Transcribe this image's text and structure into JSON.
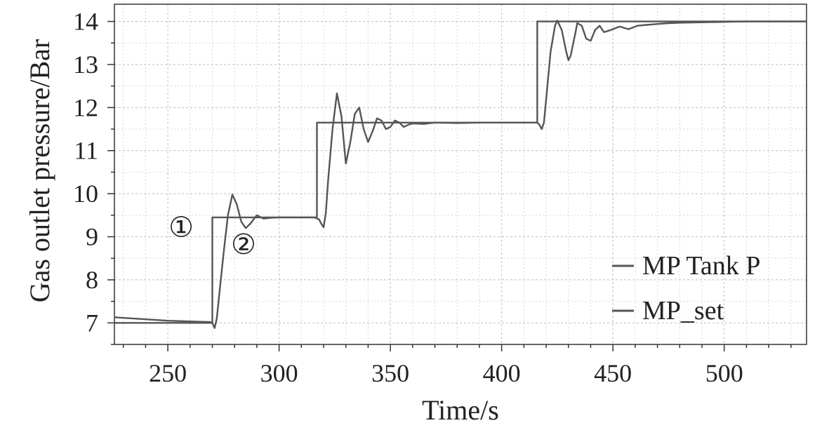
{
  "chart_data": {
    "type": "line",
    "title": "",
    "xlabel": "Time/s",
    "ylabel": "Gas outlet pressure/Bar",
    "xlim": [
      226,
      537
    ],
    "ylim": [
      6.5,
      14.4
    ],
    "xticks": [
      250,
      300,
      350,
      400,
      450,
      500
    ],
    "yticks": [
      7,
      8,
      9,
      10,
      11,
      12,
      13,
      14
    ],
    "grid": true,
    "legend_position": "bottom-right",
    "series": [
      {
        "name": "MP Tank P",
        "color": "#555555",
        "x": [
          226,
          250,
          269,
          270,
          271,
          272,
          273,
          275,
          277,
          279,
          281,
          283,
          285,
          287,
          290,
          293,
          296,
          300,
          310,
          316,
          318,
          319,
          320,
          321,
          322,
          324,
          326,
          328,
          330,
          332,
          334,
          336,
          338,
          340,
          342,
          344,
          346,
          348,
          350,
          352,
          354,
          356,
          358,
          360,
          365,
          370,
          380,
          390,
          400,
          410,
          415,
          416,
          417,
          418,
          419,
          420,
          422,
          424,
          425,
          427,
          429,
          430,
          431,
          433,
          434,
          436,
          438,
          440,
          442,
          444,
          446,
          449,
          453,
          457,
          461,
          465,
          470,
          475,
          480,
          490,
          500,
          510,
          520,
          537
        ],
        "y": [
          7.13,
          7.05,
          7.02,
          7.0,
          6.88,
          7.1,
          7.6,
          8.6,
          9.5,
          9.98,
          9.75,
          9.35,
          9.2,
          9.3,
          9.5,
          9.42,
          9.44,
          9.45,
          9.45,
          9.45,
          9.4,
          9.3,
          9.22,
          9.55,
          10.3,
          11.5,
          12.33,
          11.8,
          10.7,
          11.2,
          11.85,
          12.0,
          11.5,
          11.2,
          11.45,
          11.75,
          11.7,
          11.5,
          11.55,
          11.7,
          11.65,
          11.55,
          11.6,
          11.63,
          11.62,
          11.65,
          11.64,
          11.65,
          11.65,
          11.65,
          11.65,
          11.65,
          11.6,
          11.5,
          11.65,
          12.2,
          13.3,
          13.9,
          14.02,
          13.8,
          13.3,
          13.1,
          13.2,
          13.7,
          13.96,
          13.9,
          13.6,
          13.55,
          13.8,
          13.9,
          13.75,
          13.8,
          13.88,
          13.82,
          13.9,
          13.92,
          13.94,
          13.96,
          13.97,
          13.98,
          13.99,
          14.0,
          14.0,
          14.0
        ]
      },
      {
        "name": "MP_set",
        "color": "#555555",
        "x": [
          226,
          270,
          270,
          317,
          317,
          416,
          416,
          537
        ],
        "y": [
          7.0,
          7.0,
          9.45,
          9.45,
          11.65,
          11.65,
          14.0,
          14.0
        ]
      }
    ],
    "annotations": [
      {
        "text": "①",
        "x": 256,
        "y": 9.0
      },
      {
        "text": "②",
        "x": 284,
        "y": 8.6
      }
    ]
  }
}
